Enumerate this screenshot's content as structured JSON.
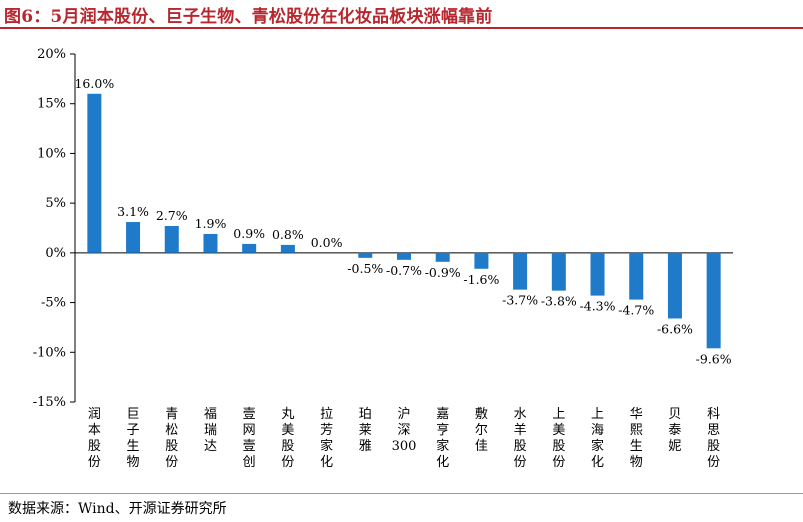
{
  "page": {
    "title": "图6：5月润本股份、巨子生物、青松股份在化妆品板块涨幅靠前",
    "source": "数据来源：Wind、开源证券研究所"
  },
  "colors": {
    "bar": "#1f7ac9",
    "title": "#b8272e"
  },
  "chart_data": {
    "type": "bar",
    "title": "",
    "xlabel": "",
    "ylabel": "",
    "ylim": [
      -15,
      20
    ],
    "yticks": [
      -15,
      -10,
      -5,
      0,
      5,
      10,
      15,
      20
    ],
    "ytick_labels": [
      "-15%",
      "-10%",
      "-5%",
      "0%",
      "5%",
      "10%",
      "15%",
      "20%"
    ],
    "grid": false,
    "categories": [
      "润本股份",
      "巨子生物",
      "青松股份",
      "福瑞达",
      "壹网壹创",
      "丸美股份",
      "拉芳家化",
      "珀莱雅",
      "沪深300",
      "嘉亨家化",
      "敷尔佳",
      "水羊股份",
      "上美股份",
      "上海家化",
      "华熙生物",
      "贝泰妮",
      "科思股份"
    ],
    "category_lines": [
      [
        "润",
        "本",
        "股",
        "份"
      ],
      [
        "巨",
        "子",
        "生",
        "物"
      ],
      [
        "青",
        "松",
        "股",
        "份"
      ],
      [
        "福",
        "瑞",
        "达"
      ],
      [
        "壹",
        "网",
        "壹",
        "创"
      ],
      [
        "丸",
        "美",
        "股",
        "份"
      ],
      [
        "拉",
        "芳",
        "家",
        "化"
      ],
      [
        "珀",
        "莱",
        "雅"
      ],
      [
        "沪",
        "深",
        "300"
      ],
      [
        "嘉",
        "亨",
        "家",
        "化"
      ],
      [
        "敷",
        "尔",
        "佳"
      ],
      [
        "水",
        "羊",
        "股",
        "份"
      ],
      [
        "上",
        "美",
        "股",
        "份"
      ],
      [
        "上",
        "海",
        "家",
        "化"
      ],
      [
        "华",
        "熙",
        "生",
        "物"
      ],
      [
        "贝",
        "泰",
        "妮"
      ],
      [
        "科",
        "思",
        "股",
        "份"
      ]
    ],
    "values": [
      16.0,
      3.1,
      2.7,
      1.9,
      0.9,
      0.8,
      0.0,
      -0.5,
      -0.7,
      -0.9,
      -1.6,
      -3.7,
      -3.8,
      -4.3,
      -4.7,
      -6.6,
      -9.6
    ],
    "data_labels": [
      "16.0%",
      "3.1%",
      "2.7%",
      "1.9%",
      "0.9%",
      "0.8%",
      "0.0%",
      "-0.5%",
      "-0.7%",
      "-0.9%",
      "-1.6%",
      "-3.7%",
      "-3.8%",
      "-4.3%",
      "-4.7%",
      "-6.6%",
      "-9.6%"
    ]
  }
}
